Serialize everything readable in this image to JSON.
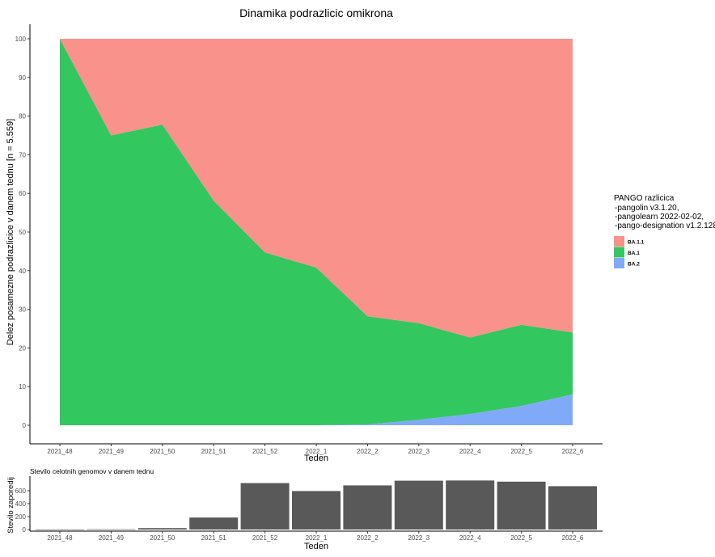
{
  "chart_data": [
    {
      "type": "area",
      "stacked": true,
      "percent": true,
      "title": "Dinamika podrazlicic omikrona",
      "xlabel": "Teden",
      "ylabel": "Delez posamezne podrazlicice v danem tednu [n = 5.559]",
      "categories": [
        "2021_48",
        "2021_49",
        "2021_50",
        "2021_51",
        "2021_52",
        "2022_1",
        "2022_2",
        "2022_3",
        "2022_4",
        "2022_5",
        "2022_6"
      ],
      "ylim": [
        0,
        100
      ],
      "yticks": [
        0,
        10,
        20,
        30,
        40,
        50,
        60,
        70,
        80,
        90,
        100
      ],
      "grid": false,
      "legend_position": "right",
      "legend_title": "PANGO razlicica",
      "legend_subtitle": [
        "-pangolin v3.1.20,",
        "-pangolearn 2022-02-02,",
        "-pango-designation v1.2.128"
      ],
      "series": [
        {
          "name": "BA.1.1",
          "color": "#f8928a",
          "values": [
            0,
            25,
            22.2,
            41.9,
            55.3,
            59.2,
            71.8,
            73.6,
            77.3,
            74,
            76
          ]
        },
        {
          "name": "BA.1",
          "color": "#33c760",
          "values": [
            100,
            75,
            77.8,
            58.1,
            44.7,
            40.8,
            28,
            25,
            19.8,
            21,
            16
          ]
        },
        {
          "name": "BA.2",
          "color": "#80aaf8",
          "values": [
            0,
            0,
            0,
            0,
            0,
            0,
            0.2,
            1.4,
            2.9,
            5,
            8
          ]
        }
      ]
    },
    {
      "type": "bar",
      "title": "Stevilo celotnih genomov v danem tednu",
      "xlabel": "Teden",
      "ylabel": "Stevilo zaporedij",
      "categories": [
        "2021_48",
        "2021_49",
        "2021_50",
        "2021_51",
        "2021_52",
        "2022_1",
        "2022_2",
        "2022_3",
        "2022_4",
        "2022_5",
        "2022_6"
      ],
      "values": [
        2,
        4,
        22,
        185,
        718,
        595,
        682,
        755,
        758,
        740,
        670
      ],
      "ylim": [
        0,
        800
      ],
      "yticks": [
        0,
        200,
        400,
        600
      ],
      "color": "#595959"
    }
  ]
}
